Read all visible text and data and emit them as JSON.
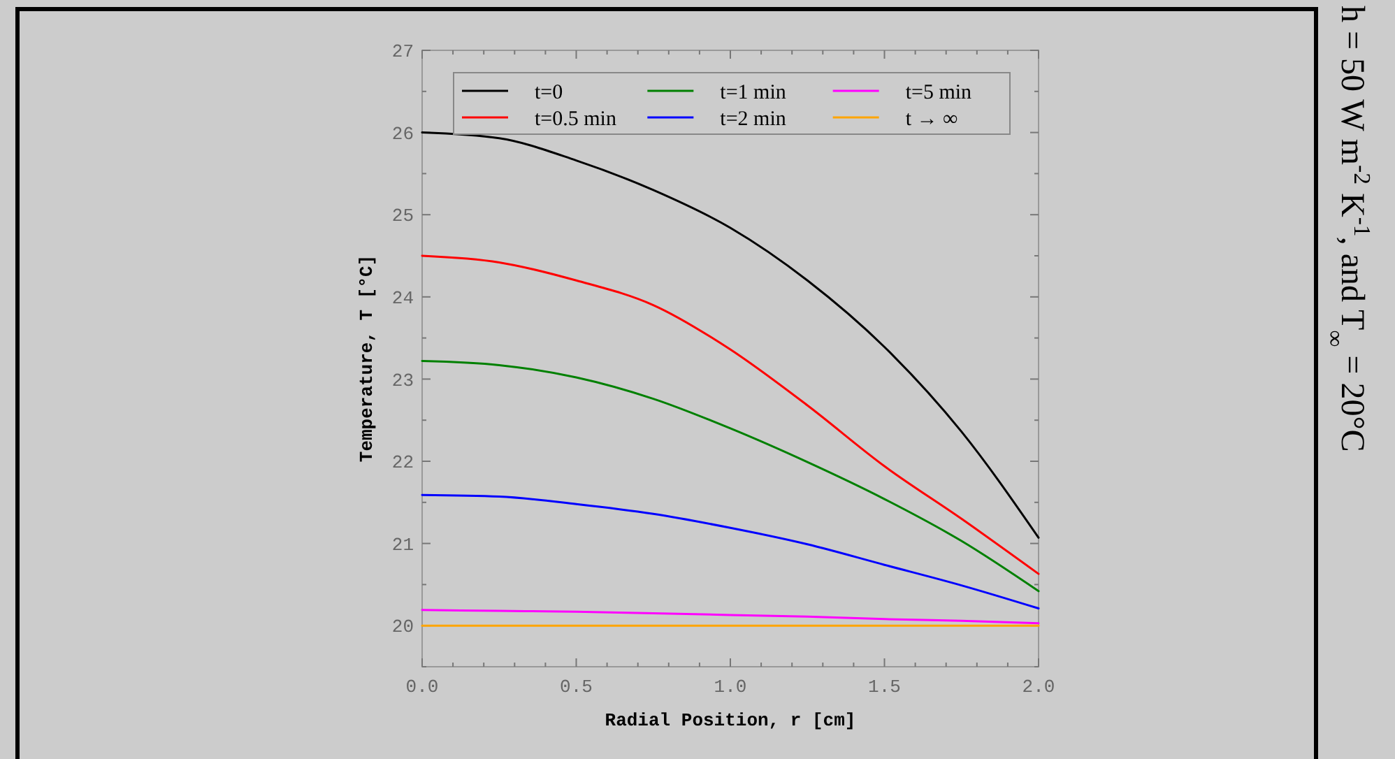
{
  "chart_data": {
    "type": "line",
    "xlabel": "Radial Position, r [cm]",
    "ylabel": "Temperature, T [°C]",
    "x": [
      0,
      0.25,
      0.5,
      0.75,
      1.0,
      1.25,
      1.5,
      1.75,
      2.0
    ],
    "series": [
      {
        "name": "t=0",
        "color": "#000000",
        "values": [
          26.0,
          25.93,
          25.66,
          25.3,
          24.84,
          24.2,
          23.39,
          22.36,
          21.07
        ]
      },
      {
        "name": "t=0.5 min",
        "color": "#ff0000",
        "values": [
          24.5,
          24.42,
          24.2,
          23.9,
          23.36,
          22.68,
          21.94,
          21.3,
          20.63
        ]
      },
      {
        "name": "t=1 min",
        "color": "#008000",
        "values": [
          23.22,
          23.17,
          23.02,
          22.76,
          22.4,
          21.99,
          21.54,
          21.03,
          20.42
        ]
      },
      {
        "name": "t=2 min",
        "color": "#0000ff",
        "values": [
          21.59,
          21.57,
          21.48,
          21.36,
          21.19,
          20.99,
          20.74,
          20.49,
          20.21
        ]
      },
      {
        "name": "t=5 min",
        "color": "#ff00ff",
        "values": [
          20.19,
          20.18,
          20.17,
          20.15,
          20.13,
          20.11,
          20.08,
          20.06,
          20.03
        ]
      },
      {
        "name": "t → ∞",
        "color": "#ffa500",
        "values": [
          20,
          20,
          20,
          20,
          20,
          20,
          20,
          20,
          20
        ]
      }
    ],
    "xlim": [
      0,
      2.0
    ],
    "xticks": [
      {
        "value": 0,
        "label": "0.0"
      },
      {
        "value": 0.1,
        "label": null
      },
      {
        "value": 0.2,
        "label": null
      },
      {
        "value": 0.3,
        "label": null
      },
      {
        "value": 0.4,
        "label": null
      },
      {
        "value": 0.5,
        "label": "0.5"
      },
      {
        "value": 0.6,
        "label": null
      },
      {
        "value": 0.7,
        "label": null
      },
      {
        "value": 0.8,
        "label": null
      },
      {
        "value": 0.9,
        "label": null
      },
      {
        "value": 1.0,
        "label": "1.0"
      },
      {
        "value": 1.1,
        "label": null
      },
      {
        "value": 1.2,
        "label": null
      },
      {
        "value": 1.3,
        "label": null
      },
      {
        "value": 1.4,
        "label": null
      },
      {
        "value": 1.5,
        "label": "1.5"
      },
      {
        "value": 1.6,
        "label": null
      },
      {
        "value": 1.7,
        "label": null
      },
      {
        "value": 1.8,
        "label": null
      },
      {
        "value": 1.9,
        "label": null
      },
      {
        "value": 2.0,
        "label": "2.0"
      }
    ],
    "ylim": [
      19.5,
      27
    ],
    "yticks": [
      {
        "value": 19.5,
        "label": null
      },
      20,
      {
        "value": 20.5,
        "label": null
      },
      21,
      {
        "value": 21.5,
        "label": null
      },
      22,
      {
        "value": 22.5,
        "label": null
      },
      23,
      {
        "value": 23.5,
        "label": null
      },
      24,
      {
        "value": 24.5,
        "label": null
      },
      25,
      {
        "value": 25.5,
        "label": null
      },
      26,
      {
        "value": 26.5,
        "label": null
      },
      27
    ],
    "grid": false,
    "legend": "top",
    "marker": "none",
    "line_style": "solid",
    "annotations": [
      "h = 50 W m$^{-2}$ K$^{-1}$, and T$_{∞}$ = 20°C"
    ]
  }
}
